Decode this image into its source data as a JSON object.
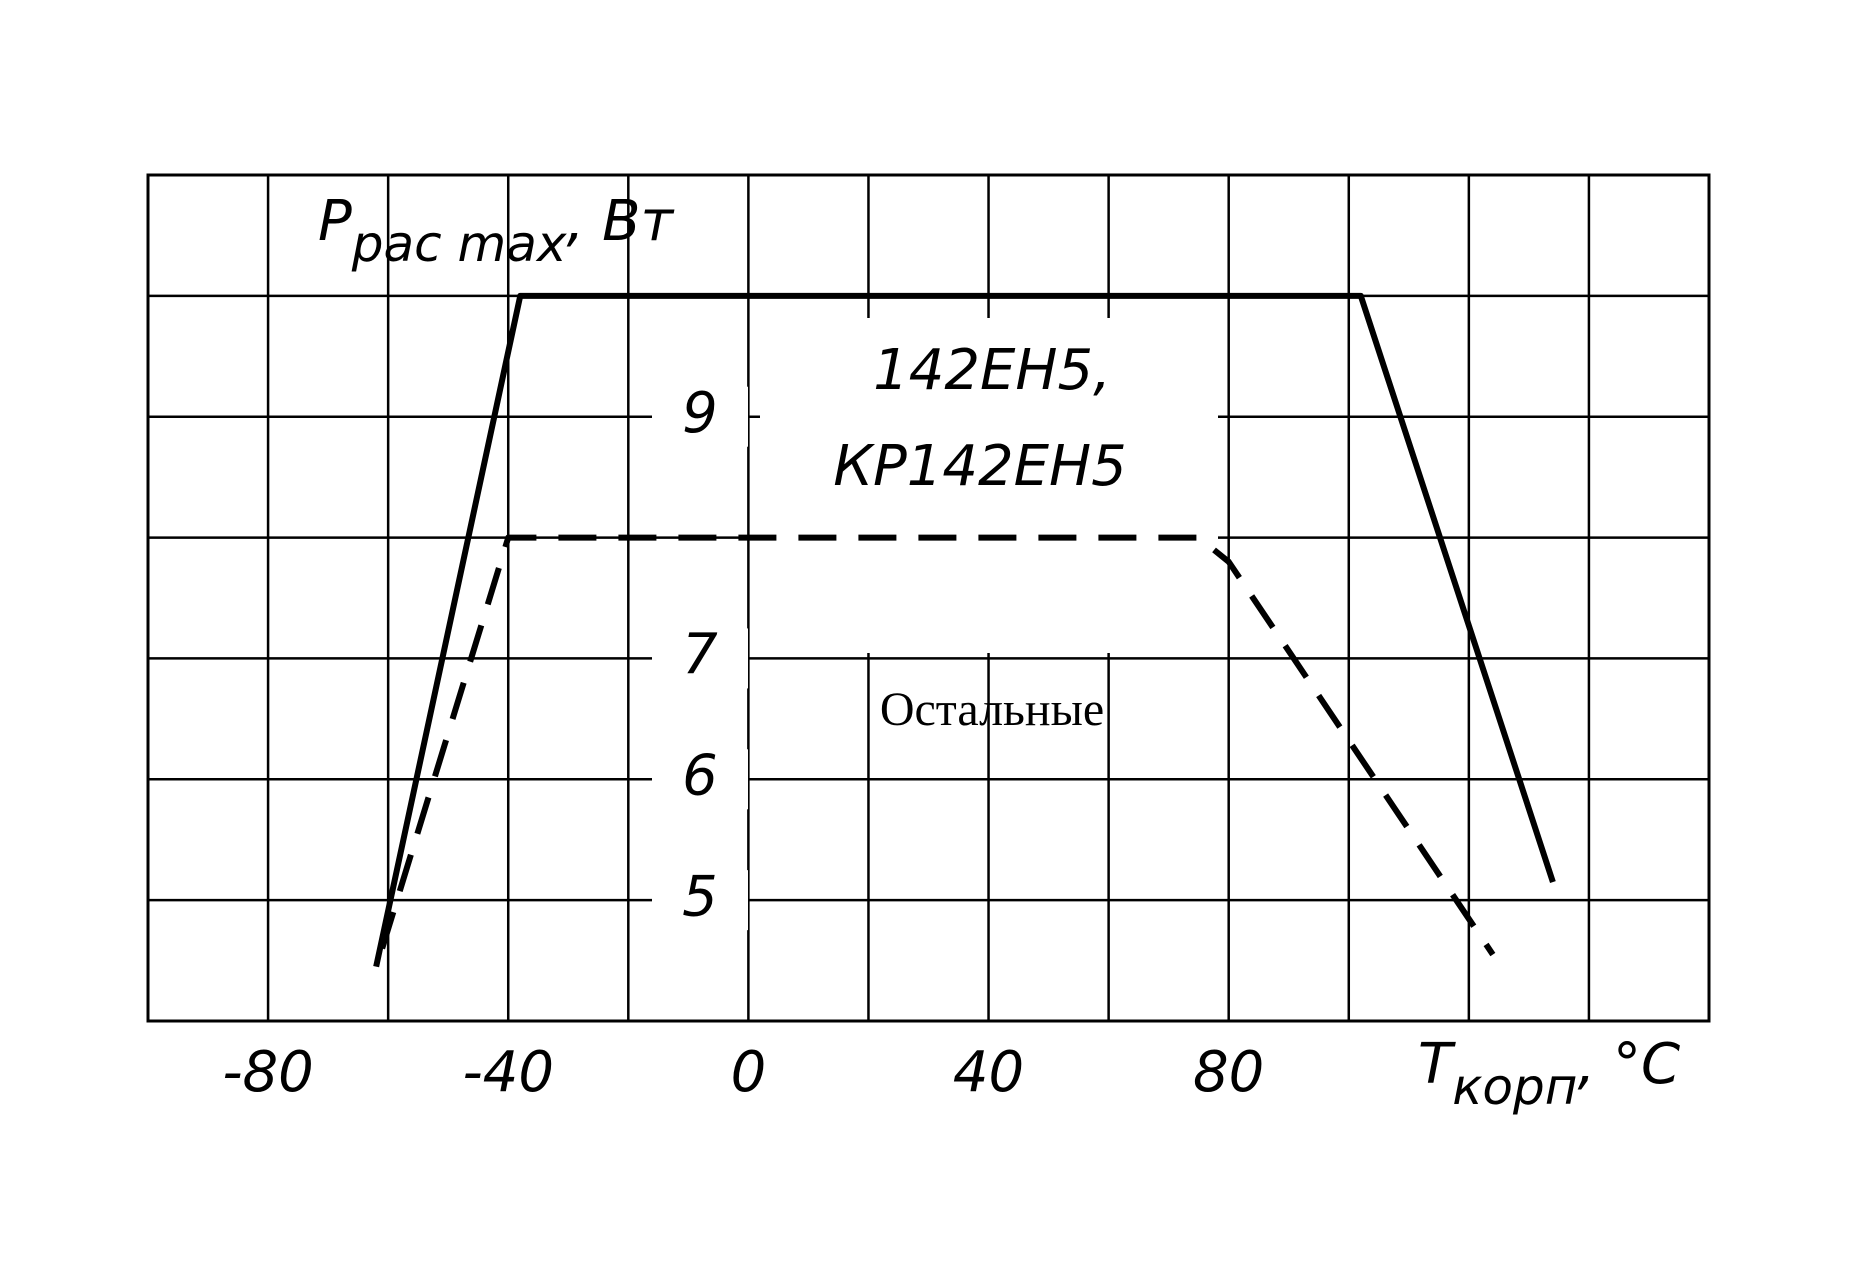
{
  "chart_data": {
    "type": "line",
    "x_label": {
      "main": "T",
      "sub": "корп",
      "unit": ", °C"
    },
    "y_label": {
      "main": "P",
      "sub": "рас max",
      "unit": ", Вт"
    },
    "xlim": [
      -100,
      160
    ],
    "xticks": [
      {
        "value": -100,
        "label": null
      },
      -80,
      {
        "value": -60,
        "label": null
      },
      -40,
      {
        "value": -20,
        "label": null
      },
      0,
      {
        "value": 20,
        "label": null
      },
      40,
      {
        "value": 60,
        "label": null
      },
      80,
      {
        "value": 100,
        "label": null
      },
      {
        "value": 120,
        "label": null
      },
      {
        "value": 140,
        "label": null
      },
      {
        "value": 160,
        "label": null
      }
    ],
    "ylim": [
      4,
      11
    ],
    "yticks": [
      {
        "value": 4,
        "label": null
      },
      5,
      6,
      7,
      {
        "value": 8,
        "label": null
      },
      9,
      {
        "value": 10,
        "label": null
      },
      {
        "value": 11,
        "label": null
      }
    ],
    "grid": true,
    "series": [
      {
        "name": "142ЕН5, КР142ЕН5",
        "color": "#000000",
        "style": "solid",
        "x": [
          -62,
          -38,
          102,
          134
        ],
        "values": [
          4.45,
          10,
          10,
          5.15
        ]
      },
      {
        "name": "Остальные",
        "color": "#000000",
        "style": "dashed",
        "x": [
          -61,
          -40,
          75,
          80,
          124
        ],
        "values": [
          4.6,
          8,
          8,
          7.8,
          4.55
        ]
      }
    ],
    "annotations": [
      "142ЕН5,",
      "КР142ЕН5",
      "Остальные"
    ]
  }
}
